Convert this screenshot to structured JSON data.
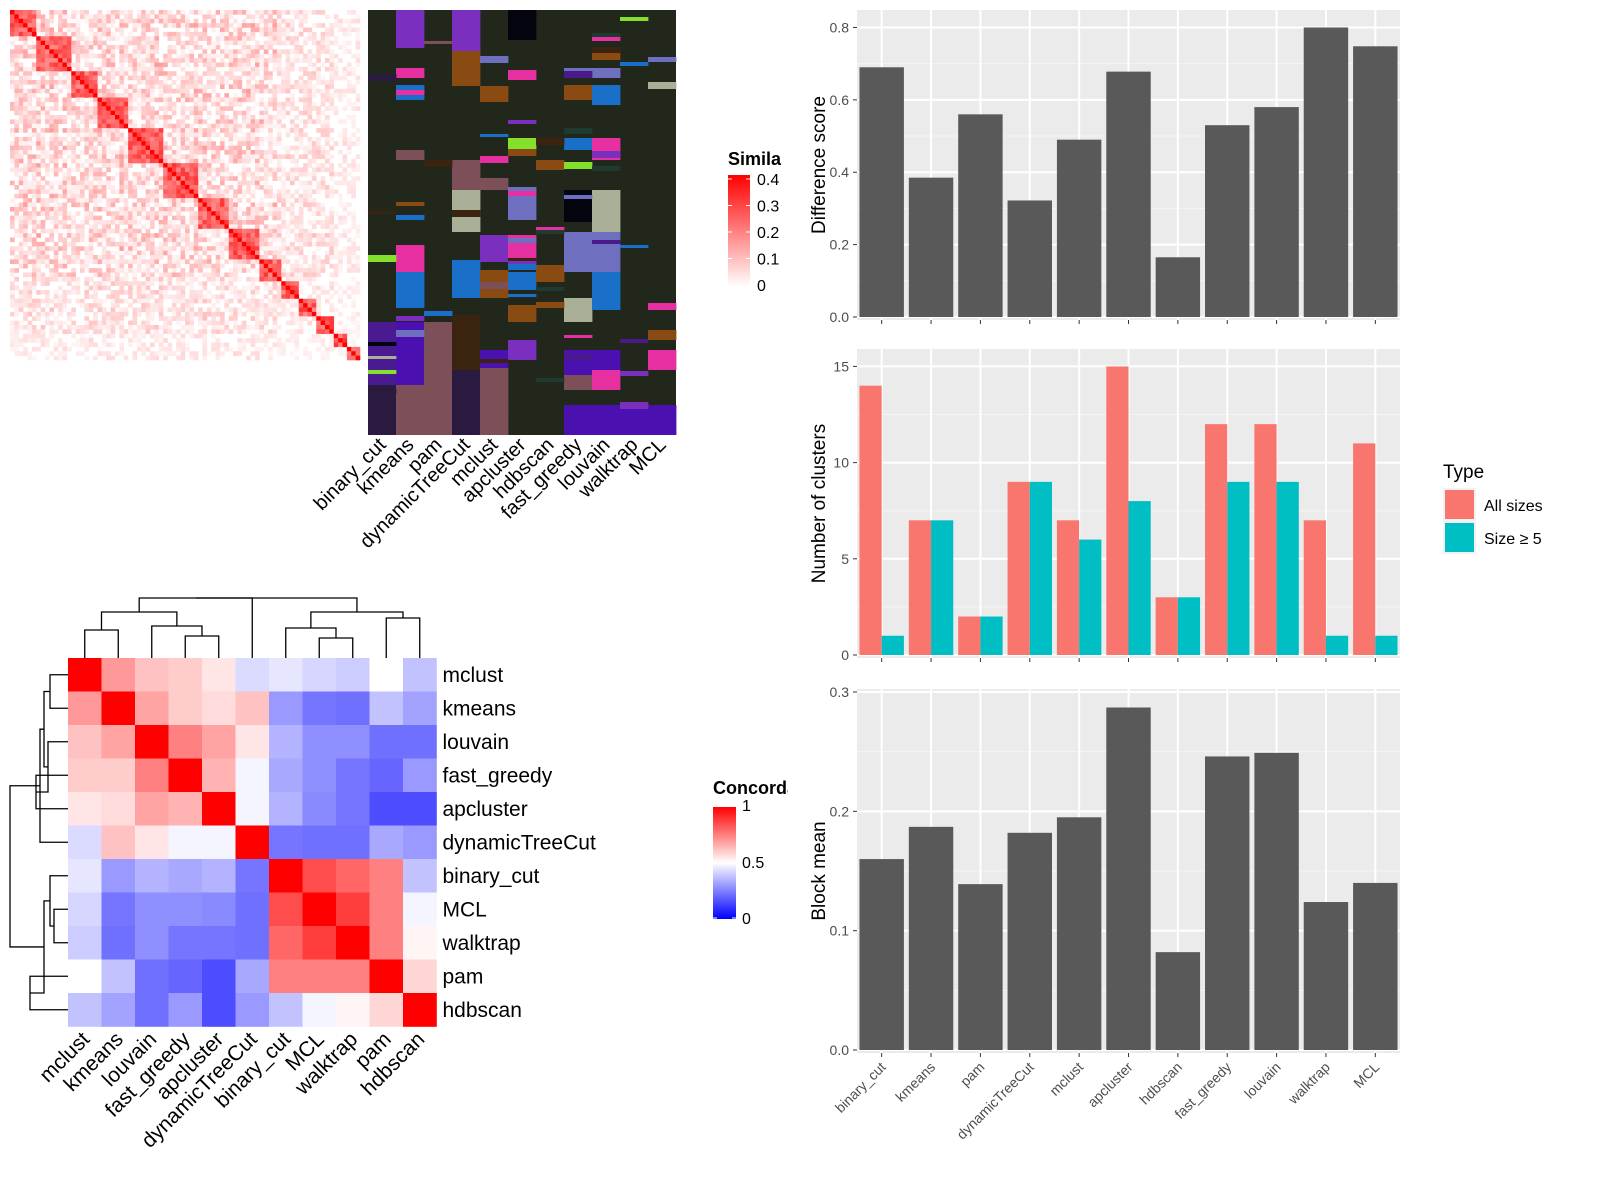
{
  "chart_data": [
    {
      "type": "heatmap",
      "id": "similarity_heatmap",
      "legend_title": "Similarity",
      "legend_ticks": [
        0,
        0.1,
        0.2,
        0.3,
        0.4
      ],
      "n": 80,
      "colors": {
        "low": "#ffffff",
        "high": "#ff0000"
      }
    },
    {
      "type": "heatmap",
      "id": "cluster_assignment",
      "columns": [
        "binary_cut",
        "kmeans",
        "pam",
        "dynamicTreeCut",
        "mclust",
        "apcluster",
        "hdbscan",
        "fast_greedy",
        "louvain",
        "walktrap",
        "MCL"
      ],
      "background": "#22271c"
    },
    {
      "type": "heatmap",
      "id": "concordance",
      "legend_title": "Concordance",
      "legend_ticks": [
        0,
        0.5,
        1
      ],
      "colors": {
        "low": "#0000ff",
        "mid": "#ffffff",
        "high": "#ff0000"
      },
      "rows": [
        "mclust",
        "kmeans",
        "louvain",
        "fast_greedy",
        "apcluster",
        "dynamicTreeCut",
        "binary_cut",
        "MCL",
        "walktrap",
        "pam",
        "hdbscan"
      ],
      "cols": [
        "mclust",
        "kmeans",
        "louvain",
        "fast_greedy",
        "apcluster",
        "dynamicTreeCut",
        "binary_cut",
        "MCL",
        "walktrap",
        "pam",
        "hdbscan"
      ],
      "values": [
        [
          1.0,
          0.7,
          0.62,
          0.6,
          0.55,
          0.43,
          0.45,
          0.42,
          0.4,
          0.5,
          0.38
        ],
        [
          0.7,
          1.0,
          0.68,
          0.6,
          0.57,
          0.62,
          0.3,
          0.23,
          0.22,
          0.38,
          0.32
        ],
        [
          0.62,
          0.68,
          1.0,
          0.75,
          0.68,
          0.55,
          0.35,
          0.28,
          0.28,
          0.22,
          0.22
        ],
        [
          0.6,
          0.6,
          0.75,
          1.0,
          0.65,
          0.48,
          0.33,
          0.28,
          0.23,
          0.2,
          0.3
        ],
        [
          0.55,
          0.57,
          0.68,
          0.65,
          1.0,
          0.48,
          0.35,
          0.27,
          0.23,
          0.15,
          0.15
        ],
        [
          0.43,
          0.62,
          0.55,
          0.48,
          0.48,
          1.0,
          0.23,
          0.22,
          0.22,
          0.33,
          0.3
        ],
        [
          0.45,
          0.3,
          0.35,
          0.33,
          0.35,
          0.23,
          1.0,
          0.85,
          0.8,
          0.75,
          0.38
        ],
        [
          0.42,
          0.23,
          0.28,
          0.28,
          0.27,
          0.22,
          0.85,
          1.0,
          0.88,
          0.75,
          0.48
        ],
        [
          0.4,
          0.22,
          0.28,
          0.23,
          0.23,
          0.22,
          0.8,
          0.88,
          1.0,
          0.75,
          0.52
        ],
        [
          0.5,
          0.38,
          0.22,
          0.2,
          0.15,
          0.33,
          0.75,
          0.75,
          0.75,
          1.0,
          0.58
        ],
        [
          0.38,
          0.32,
          0.22,
          0.3,
          0.15,
          0.3,
          0.38,
          0.48,
          0.52,
          0.58,
          1.0
        ]
      ]
    },
    {
      "type": "bar",
      "id": "difference_score",
      "categories": [
        "binary_cut",
        "kmeans",
        "pam",
        "dynamicTreeCut",
        "mclust",
        "apcluster",
        "hdbscan",
        "fast_greedy",
        "louvain",
        "walktrap",
        "MCL"
      ],
      "values": [
        0.69,
        0.385,
        0.56,
        0.322,
        0.49,
        0.678,
        0.165,
        0.53,
        0.58,
        0.8,
        0.748
      ],
      "ylabel": "Difference score",
      "ylim": [
        0,
        0.84
      ],
      "yticks": [
        "0.0",
        "0.2",
        "0.4",
        "0.6",
        "0.8"
      ],
      "grid": true,
      "color": "#595959"
    },
    {
      "type": "bar",
      "id": "number_of_clusters",
      "categories": [
        "binary_cut",
        "kmeans",
        "pam",
        "dynamicTreeCut",
        "mclust",
        "apcluster",
        "hdbscan",
        "fast_greedy",
        "louvain",
        "walktrap",
        "MCL"
      ],
      "series": [
        {
          "name": "All sizes",
          "color": "#f8766d",
          "values": [
            14,
            7,
            2,
            9,
            7,
            15,
            3,
            12,
            12,
            7,
            11
          ]
        },
        {
          "name": "Size ≥ 5",
          "color": "#00bfc4",
          "values": [
            1,
            7,
            2,
            9,
            6,
            8,
            3,
            9,
            9,
            1,
            1
          ]
        }
      ],
      "ylabel": "Number of clusters",
      "ylim": [
        0,
        15.75
      ],
      "yticks": [
        "0",
        "5",
        "10",
        "15"
      ],
      "legend_title": "Type",
      "legend_position": "right",
      "grid": true
    },
    {
      "type": "bar",
      "id": "block_mean",
      "categories": [
        "binary_cut",
        "kmeans",
        "pam",
        "dynamicTreeCut",
        "mclust",
        "apcluster",
        "hdbscan",
        "fast_greedy",
        "louvain",
        "walktrap",
        "MCL"
      ],
      "values": [
        0.16,
        0.187,
        0.139,
        0.182,
        0.195,
        0.287,
        0.082,
        0.246,
        0.249,
        0.124,
        0.14
      ],
      "ylabel": "Block mean",
      "ylim": [
        0,
        0.3
      ],
      "yticks": [
        "0.0",
        "0.1",
        "0.2",
        "0.3"
      ],
      "grid": true,
      "color": "#595959"
    }
  ]
}
